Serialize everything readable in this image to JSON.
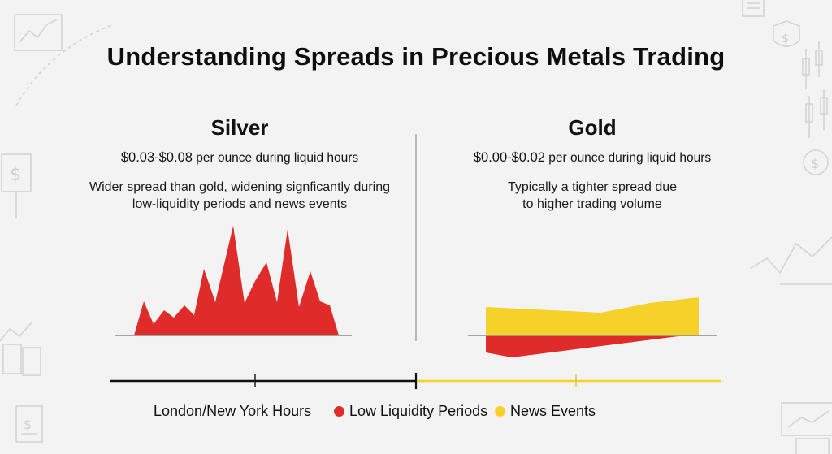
{
  "title": "Understanding Spreads in Precious Metals Trading",
  "silver": {
    "name": "Silver",
    "spread_value": "$0.03-$0.08",
    "spread_suffix": "per ounce during liquid hours",
    "note_line1": "Wider spread than gold, widening signficantly during",
    "note_line2": "low-liquidity periods and news events"
  },
  "gold": {
    "name": "Gold",
    "spread_value": "$0.00-$0.02",
    "spread_suffix": "per ounce during liquid hours",
    "note_line1": "Typically a tighter spread due",
    "note_line2": "to higher trading volume"
  },
  "legend": {
    "hours": "London/New York Hours",
    "low_liquidity": "Low Liquidity Periods",
    "news": "News Events"
  },
  "colors": {
    "red": "#e02b2b",
    "yellow": "#f5d22a",
    "dark": "#111111",
    "deco": "#d6d6d6"
  },
  "icons": [
    "trend-chart-icon",
    "dollar-shield-icon",
    "dollar-sign-icon",
    "candlestick-icon",
    "document-icon",
    "line-chart-icon",
    "bar-chart-icon"
  ]
}
